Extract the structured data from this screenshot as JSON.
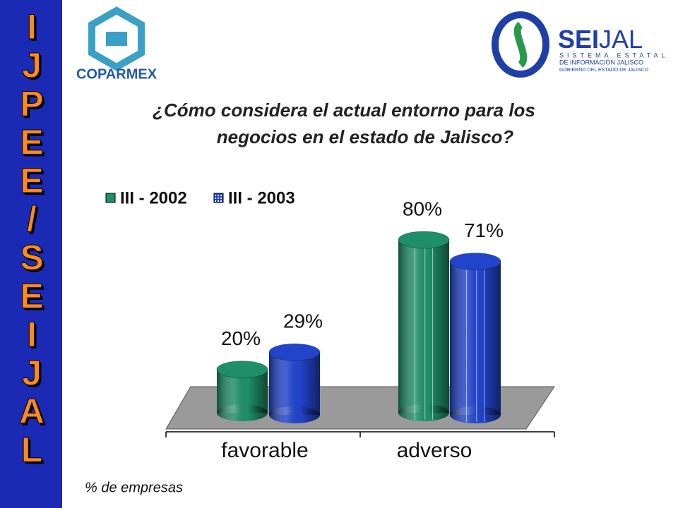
{
  "sidebar": [
    "I",
    "J",
    "P",
    "E",
    "E",
    "/",
    "S",
    "E",
    "I",
    "J",
    "A",
    "L"
  ],
  "logos": {
    "left": "COPARMEX",
    "right": {
      "name_bold": "SEI",
      "name_light": "JAL",
      "line1": "SISTEMA ESTATAL",
      "line2": "DE INFORMACIÓN JALISCO",
      "line3": "GOBIERNO DEL ESTADO DE JALISCO"
    }
  },
  "chart_data": {
    "type": "bar3d",
    "title": [
      "¿Cómo considera el actual entorno para los",
      "negocios en el estado de Jalisco?"
    ],
    "categories": [
      "favorable",
      "adverso"
    ],
    "series": [
      {
        "name": "III - 2002",
        "color": "#1f8f6a",
        "values": [
          20,
          80
        ],
        "value_labels": [
          "20%",
          "80%"
        ]
      },
      {
        "name": "III - 2003",
        "color": "#2244cc",
        "values": [
          29,
          71
        ],
        "value_labels": [
          "29%",
          "71%"
        ]
      }
    ],
    "footnote": "% de empresas"
  }
}
